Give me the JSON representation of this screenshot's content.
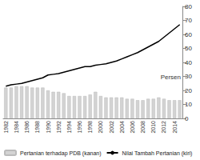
{
  "chart_data": {
    "type": "bar",
    "y_label": "Persen",
    "categories": [
      "1982",
      null,
      "1984",
      null,
      "1986",
      null,
      "1988",
      null,
      "1990",
      null,
      "1992",
      null,
      "1994",
      null,
      "1996",
      null,
      "1998",
      null,
      "2000",
      null,
      "2002",
      null,
      "2004",
      null,
      "2006",
      null,
      "2008",
      null,
      "2010",
      null,
      "2012",
      null,
      "2014",
      null
    ],
    "series": [
      {
        "name": "Pertanian terhadap PDB (kanan)",
        "type": "bar",
        "color": "#d3d3d3",
        "values": [
          22,
          22,
          23,
          23,
          23,
          22,
          22,
          22,
          20,
          19,
          19,
          18,
          16,
          16,
          16,
          16,
          17,
          19,
          16,
          15,
          15,
          15,
          15,
          14,
          14,
          13,
          13,
          14,
          14,
          15,
          14,
          13,
          13,
          13
        ]
      },
      {
        "name": "Nilai Tambah Pertanian (kiri)",
        "type": "line",
        "color": "#000000",
        "values": [
          23,
          24,
          24.5,
          25,
          26,
          27,
          28,
          29,
          31,
          31.5,
          32,
          33,
          34,
          35,
          36,
          37,
          37,
          38,
          38.5,
          39,
          40,
          41,
          42.5,
          44,
          45.5,
          47,
          49,
          51,
          53,
          55,
          58,
          61,
          64,
          67
        ]
      }
    ],
    "ylim": [
      0,
      80
    ],
    "yticks": [
      0,
      10,
      20,
      30,
      40,
      50,
      60,
      70,
      80
    ],
    "grid": false,
    "legend": "bottom"
  }
}
